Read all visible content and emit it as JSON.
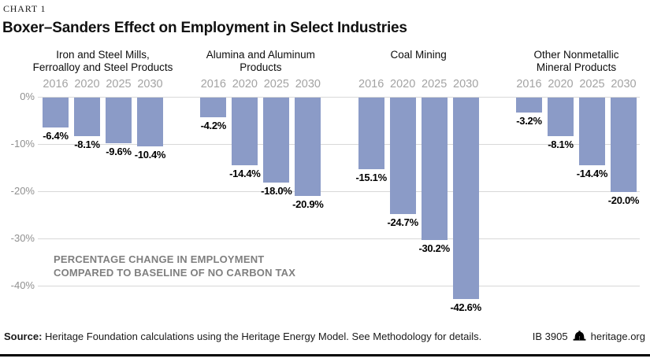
{
  "header": {
    "kicker": "CHART 1",
    "title": "Boxer–Sanders Effect on Employment in Select Industries"
  },
  "chart_data": {
    "type": "bar",
    "categories": [
      "2016",
      "2020",
      "2025",
      "2030"
    ],
    "groups": [
      {
        "title": "Iron and Steel Mills,\nFerroalloy and Steel Products",
        "values": [
          -6.4,
          -8.1,
          -9.6,
          -10.4
        ],
        "labels": [
          "-6.4%",
          "-8.1%",
          "-9.6%",
          "-10.4%"
        ]
      },
      {
        "title": "Alumina and Aluminum\nProducts",
        "values": [
          -4.2,
          -14.4,
          -18.0,
          -20.9
        ],
        "labels": [
          "-4.2%",
          "-14.4%",
          "-18.0%",
          "-20.9%"
        ]
      },
      {
        "title": "Coal Mining",
        "values": [
          -15.1,
          -24.7,
          -30.2,
          -42.6
        ],
        "labels": [
          "-15.1%",
          "-24.7%",
          "-30.2%",
          "-42.6%"
        ]
      },
      {
        "title": "Other Nonmetallic\nMineral Products",
        "values": [
          -3.2,
          -8.1,
          -14.4,
          -20.0
        ],
        "labels": [
          "-3.2%",
          "-8.1%",
          "-14.4%",
          "-20.0%"
        ]
      }
    ],
    "y_ticks": [
      "0%",
      "-10%",
      "-20%",
      "-30%",
      "-40%"
    ],
    "ylim": [
      -45,
      0
    ],
    "grid": true,
    "bar_color": "#8b9bc7",
    "annotation": "PERCENTAGE CHANGE IN EMPLOYMENT\nCOMPARED TO BASELINE OF NO CARBON TAX"
  },
  "footer": {
    "source_label": "Source:",
    "source_text": " Heritage Foundation calculations using the Heritage Energy Model. See Methodology for details.",
    "report_id": "IB 3905",
    "site": "heritage.org",
    "logo": "heritage-bell-icon"
  }
}
